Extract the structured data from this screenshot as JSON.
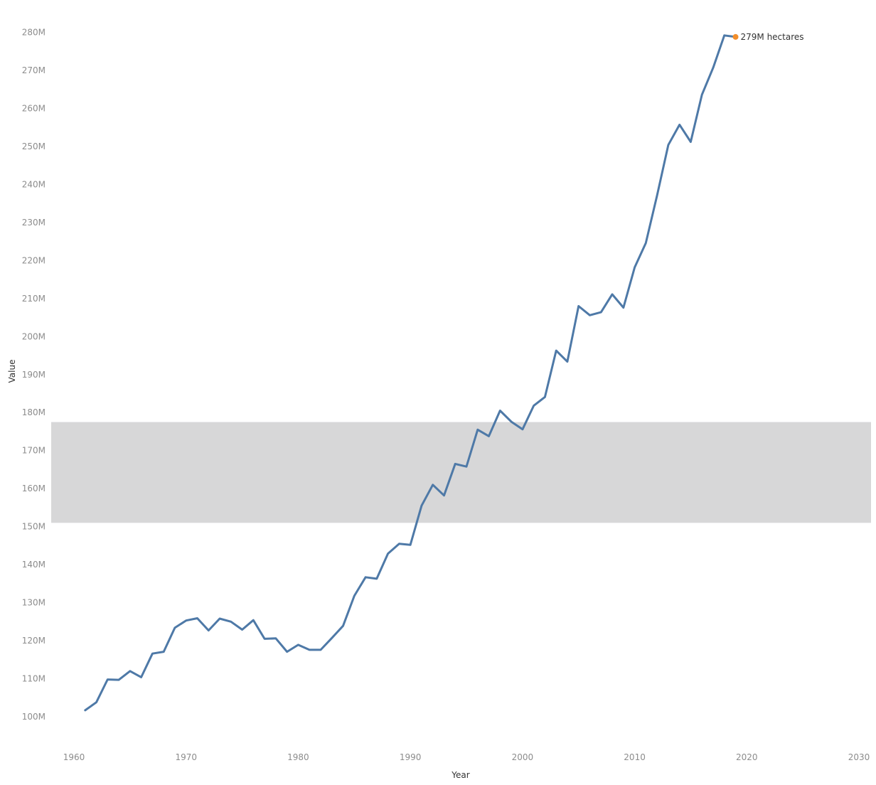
{
  "chart_data": {
    "type": "line",
    "title": "",
    "xlabel": "Year",
    "ylabel": "Value",
    "xlim": [
      1957,
      2031
    ],
    "ylim": [
      96000000,
      282000000
    ],
    "x_ticks": [
      1960,
      1970,
      1980,
      1990,
      2000,
      2010,
      2020,
      2030
    ],
    "x_tick_labels": [
      "1960",
      "1970",
      "1980",
      "1990",
      "2000",
      "2010",
      "2020",
      "2030"
    ],
    "y_ticks": [
      100000000,
      110000000,
      120000000,
      130000000,
      140000000,
      150000000,
      160000000,
      170000000,
      180000000,
      190000000,
      200000000,
      210000000,
      220000000,
      230000000,
      240000000,
      250000000,
      260000000,
      270000000,
      280000000
    ],
    "y_tick_labels": [
      "100M",
      "110M",
      "120M",
      "130M",
      "140M",
      "150M",
      "160M",
      "170M",
      "180M",
      "190M",
      "200M",
      "210M",
      "220M",
      "230M",
      "240M",
      "250M",
      "260M",
      "270M",
      "280M"
    ],
    "grid": false,
    "band": {
      "y_from": 151000000,
      "y_to": 177500000,
      "color": "#d7d7d8"
    },
    "series": [
      {
        "color": "#4e79a7",
        "x": [
          1961,
          1962,
          1963,
          1964,
          1965,
          1966,
          1967,
          1968,
          1969,
          1970,
          1971,
          1972,
          1973,
          1974,
          1975,
          1976,
          1977,
          1978,
          1979,
          1980,
          1981,
          1982,
          1983,
          1984,
          1985,
          1986,
          1987,
          1988,
          1989,
          1990,
          1991,
          1992,
          1993,
          1994,
          1995,
          1996,
          1997,
          1998,
          1999,
          2000,
          2001,
          2002,
          2003,
          2004,
          2005,
          2006,
          2007,
          2008,
          2009,
          2010,
          2011,
          2012,
          2013,
          2014,
          2015,
          2016,
          2017,
          2018,
          2019
        ],
        "values": [
          101700000,
          103800000,
          109800000,
          109700000,
          112000000,
          110400000,
          116600000,
          117100000,
          123400000,
          125300000,
          125900000,
          122700000,
          125800000,
          125000000,
          122900000,
          125400000,
          120500000,
          120600000,
          117100000,
          118900000,
          117600000,
          117600000,
          120700000,
          123900000,
          131800000,
          136700000,
          136300000,
          142900000,
          145500000,
          145200000,
          155500000,
          161000000,
          158200000,
          166500000,
          165800000,
          175500000,
          173800000,
          180500000,
          177600000,
          175600000,
          181800000,
          184100000,
          196300000,
          193400000,
          208000000,
          205600000,
          206400000,
          211100000,
          207600000,
          218200000,
          224600000,
          237100000,
          250400000,
          255700000,
          251200000,
          263600000,
          270700000,
          279200000,
          278800000
        ]
      }
    ],
    "highlight": {
      "x": 2019,
      "y": 278800000,
      "color": "#f28e2b",
      "label": "279M hectares"
    }
  }
}
